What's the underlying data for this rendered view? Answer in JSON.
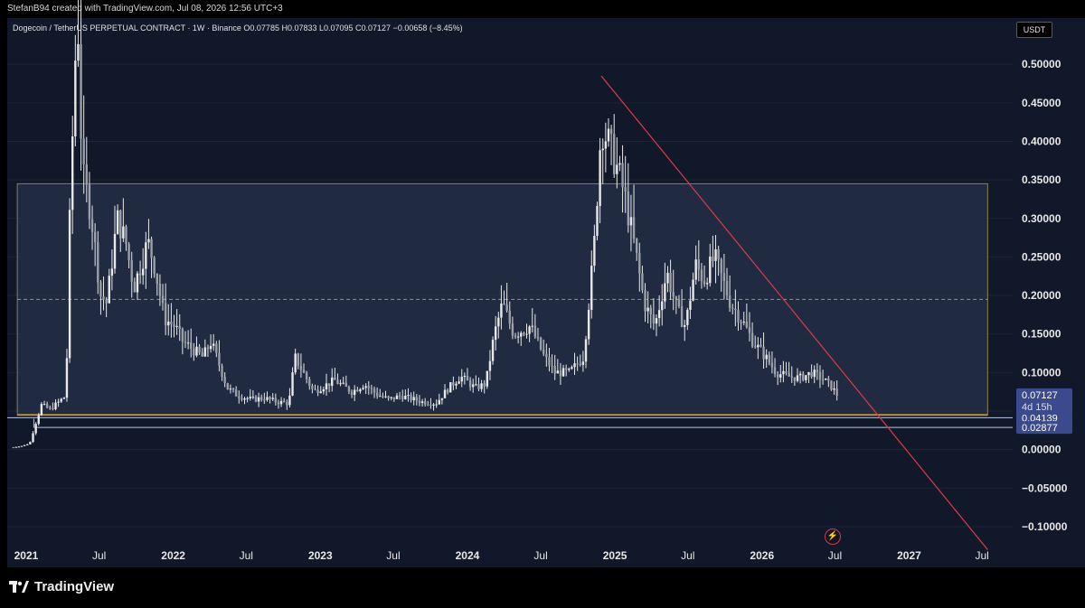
{
  "header": {
    "credit": "StefanB94 created with TradingView.com, Jul 08, 2026 12:56 UTC+3"
  },
  "legend": {
    "text": "Dogecoin / TetherUS PERPETUAL CONTRACT · 1W · Binance  O0.07785  H0.07833  L0.07095  C0.07127  −0.00658 (−8.45%)"
  },
  "currency_box": "USDT",
  "branding": {
    "logo_text": "TradingView"
  },
  "icons": {
    "flash": "lightning-icon",
    "logo": "tradingview-logo-icon"
  },
  "colors": {
    "background": "#111829",
    "candle": "#e8e8e8",
    "range_box": "#25304a",
    "range_border": "#8a7f5a",
    "mid_dashed": "#b8923e",
    "support_line_1": "#b8c6e8",
    "support_line_2": "#b8c6e8",
    "trendline": "#e0394a",
    "price_label_bg": "#3b4a8c"
  },
  "chart_data": {
    "type": "candlestick",
    "title": "Dogecoin / TetherUS PERPETUAL CONTRACT · 1W · Binance",
    "ylabel": "USDT",
    "ylim": [
      -0.12,
      0.56
    ],
    "xlim": [
      "2020-11-15",
      "2027-09-15"
    ],
    "y_ticks": [
      "0.50000",
      "0.45000",
      "0.40000",
      "0.35000",
      "0.30000",
      "0.25000",
      "0.20000",
      "0.15000",
      "0.10000",
      "0.05000",
      "0.00000",
      "−0.05000",
      "−0.10000"
    ],
    "x_ticks": [
      {
        "label": "2021",
        "date": "2021-01-01",
        "bold": true
      },
      {
        "label": "Jul",
        "date": "2021-07-01",
        "bold": false
      },
      {
        "label": "2022",
        "date": "2022-01-01",
        "bold": true
      },
      {
        "label": "Jul",
        "date": "2022-07-01",
        "bold": false
      },
      {
        "label": "2023",
        "date": "2023-01-01",
        "bold": true
      },
      {
        "label": "Jul",
        "date": "2023-07-01",
        "bold": false
      },
      {
        "label": "2024",
        "date": "2024-01-01",
        "bold": true
      },
      {
        "label": "Jul",
        "date": "2024-07-01",
        "bold": false
      },
      {
        "label": "2025",
        "date": "2025-01-01",
        "bold": true
      },
      {
        "label": "Jul",
        "date": "2025-07-01",
        "bold": false
      },
      {
        "label": "2026",
        "date": "2026-01-01",
        "bold": true
      },
      {
        "label": "Jul",
        "date": "2026-07-01",
        "bold": false
      },
      {
        "label": "2027",
        "date": "2027-01-01",
        "bold": true
      },
      {
        "label": "Jul",
        "date": "2027-07-01",
        "bold": false
      }
    ],
    "price_series": [
      [
        "2020-11-30",
        0.003
      ],
      [
        "2020-12-20",
        0.0045
      ],
      [
        "2021-01-10",
        0.008
      ],
      [
        "2021-01-25",
        0.035
      ],
      [
        "2021-02-08",
        0.058
      ],
      [
        "2021-03-01",
        0.052
      ],
      [
        "2021-04-10",
        0.07
      ],
      [
        "2021-04-20",
        0.32
      ],
      [
        "2021-05-08",
        0.58
      ],
      [
        "2021-05-20",
        0.36
      ],
      [
        "2021-06-10",
        0.31
      ],
      [
        "2021-07-05",
        0.2
      ],
      [
        "2021-07-20",
        0.19
      ],
      [
        "2021-08-15",
        0.3
      ],
      [
        "2021-09-05",
        0.27
      ],
      [
        "2021-09-25",
        0.21
      ],
      [
        "2021-10-30",
        0.27
      ],
      [
        "2021-11-15",
        0.24
      ],
      [
        "2021-12-10",
        0.17
      ],
      [
        "2022-01-05",
        0.16
      ],
      [
        "2022-01-25",
        0.14
      ],
      [
        "2022-03-15",
        0.12
      ],
      [
        "2022-04-05",
        0.14
      ],
      [
        "2022-05-15",
        0.08
      ],
      [
        "2022-06-10",
        0.07
      ],
      [
        "2022-07-15",
        0.065
      ],
      [
        "2022-08-15",
        0.067
      ],
      [
        "2022-09-15",
        0.062
      ],
      [
        "2022-10-15",
        0.06
      ],
      [
        "2022-10-30",
        0.12
      ],
      [
        "2022-12-15",
        0.075
      ],
      [
        "2023-02-05",
        0.09
      ],
      [
        "2023-03-20",
        0.075
      ],
      [
        "2023-04-20",
        0.085
      ],
      [
        "2023-05-20",
        0.072
      ],
      [
        "2023-06-20",
        0.065
      ],
      [
        "2023-07-20",
        0.07
      ],
      [
        "2023-09-10",
        0.062
      ],
      [
        "2023-10-15",
        0.06
      ],
      [
        "2023-11-15",
        0.08
      ],
      [
        "2023-12-15",
        0.095
      ],
      [
        "2024-01-20",
        0.08
      ],
      [
        "2024-02-15",
        0.085
      ],
      [
        "2024-03-08",
        0.15
      ],
      [
        "2024-03-28",
        0.19
      ],
      [
        "2024-04-25",
        0.15
      ],
      [
        "2024-06-05",
        0.16
      ],
      [
        "2024-07-10",
        0.12
      ],
      [
        "2024-08-05",
        0.1
      ],
      [
        "2024-09-10",
        0.1
      ],
      [
        "2024-10-15",
        0.12
      ],
      [
        "2024-11-10",
        0.26
      ],
      [
        "2024-11-28",
        0.42
      ],
      [
        "2024-12-15",
        0.4
      ],
      [
        "2025-01-10",
        0.36
      ],
      [
        "2025-01-25",
        0.33
      ],
      [
        "2025-02-20",
        0.26
      ],
      [
        "2025-03-15",
        0.19
      ],
      [
        "2025-04-10",
        0.16
      ],
      [
        "2025-05-10",
        0.23
      ],
      [
        "2025-06-05",
        0.18
      ],
      [
        "2025-06-25",
        0.16
      ],
      [
        "2025-07-20",
        0.24
      ],
      [
        "2025-08-10",
        0.22
      ],
      [
        "2025-09-05",
        0.25
      ],
      [
        "2025-09-25",
        0.22
      ],
      [
        "2025-10-15",
        0.19
      ],
      [
        "2025-11-10",
        0.17
      ],
      [
        "2025-12-10",
        0.14
      ],
      [
        "2026-01-10",
        0.12
      ],
      [
        "2026-02-05",
        0.1
      ],
      [
        "2026-03-05",
        0.095
      ],
      [
        "2026-04-05",
        0.093
      ],
      [
        "2026-05-05",
        0.1
      ],
      [
        "2026-06-05",
        0.09
      ],
      [
        "2026-06-25",
        0.08
      ],
      [
        "2026-07-06",
        0.07127
      ]
    ],
    "annotations": {
      "range_box": {
        "from": "2020-12-10",
        "to": "2027-07-15",
        "low": 0.045,
        "high": 0.345,
        "mid": 0.195
      },
      "support_1": {
        "from": "2020-11-15",
        "value": 0.04139
      },
      "support_2": {
        "from": "2021-01-20",
        "value": 0.02877
      },
      "trendline": {
        "start": [
          "2024-11-28",
          0.485
        ],
        "end": [
          "2027-07-15",
          -0.13
        ]
      }
    },
    "price_labels": [
      {
        "value": 0.07127,
        "text": "0.07127",
        "sub": "4d 15h"
      },
      {
        "value": 0.04139,
        "text": "0.04139"
      },
      {
        "value": 0.02877,
        "text": "0.02877"
      }
    ]
  }
}
